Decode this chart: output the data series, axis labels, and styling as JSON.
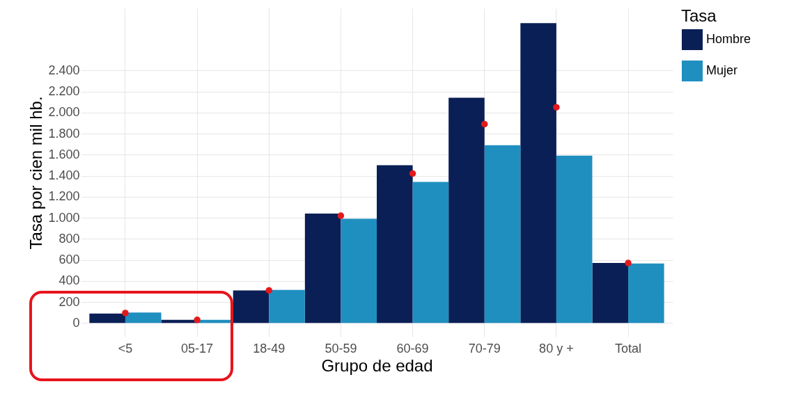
{
  "chart_data": {
    "type": "bar",
    "xlabel": "Grupo de edad",
    "ylabel": "Tasa por cien mil hb.",
    "legend_title": "Tasa",
    "categories": [
      "<5",
      "05-17",
      "18-49",
      "50-59",
      "60-69",
      "70-79",
      "80 y +",
      "Total"
    ],
    "series": [
      {
        "name": "Hombre",
        "color": "#0a1f55",
        "values": [
          90,
          30,
          310,
          1040,
          1500,
          2140,
          2850,
          570
        ]
      },
      {
        "name": "Mujer",
        "color": "#1f8fc0",
        "values": [
          100,
          30,
          315,
          990,
          1340,
          1690,
          1590,
          565
        ]
      },
      {
        "type": "scatter",
        "color": "#e31a1c",
        "x": [
          "<5",
          "05-17",
          "18-49",
          "50-59",
          "60-69",
          "70-79",
          "80 y +",
          "Total"
        ],
        "values": [
          95,
          30,
          310,
          1020,
          1420,
          1890,
          2050,
          570
        ]
      }
    ],
    "ylim": [
      -130,
      2990
    ],
    "yticks": [
      0,
      200,
      400,
      600,
      800,
      {
        "value": 1000,
        "label": "1.000"
      },
      {
        "value": 1200,
        "label": "1.200"
      },
      {
        "value": 1400,
        "label": "1.400"
      },
      {
        "value": 1600,
        "label": "1.600"
      },
      {
        "value": 1800,
        "label": "1.800"
      },
      {
        "value": 2000,
        "label": "2.000"
      },
      {
        "value": 2200,
        "label": "2.200"
      },
      {
        "value": 2400,
        "label": "2.400"
      }
    ],
    "grid": true,
    "legend": "right",
    "marker": "circle"
  }
}
